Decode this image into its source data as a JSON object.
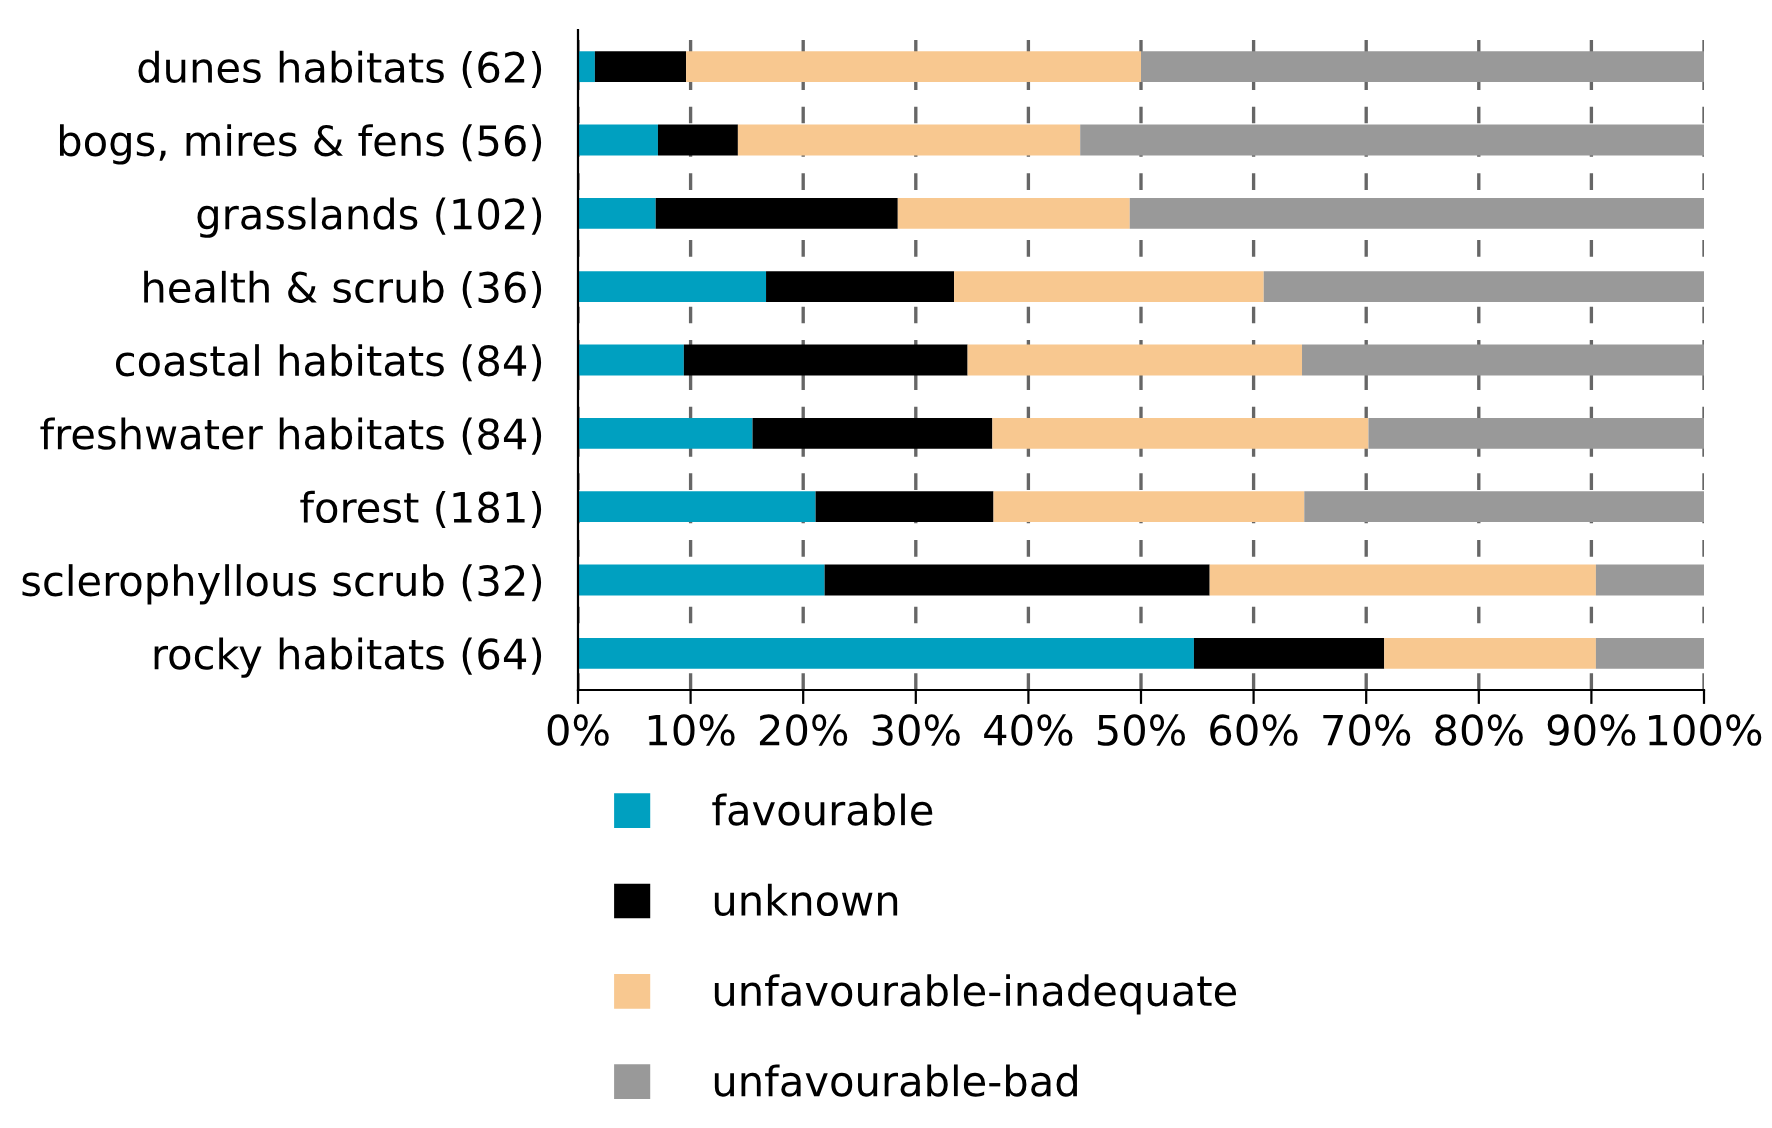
{
  "chart_data": {
    "type": "bar",
    "orientation": "horizontal",
    "stacked": true,
    "categories": [
      "dunes habitats (62)",
      "bogs, mires & fens (56)",
      "grasslands (102)",
      "health & scrub (36)",
      "coastal habitats (84)",
      "freshwater habitats (84)",
      "forest (181)",
      "sclerophyllous scrub (32)",
      "rocky habitats (64)"
    ],
    "series": [
      {
        "name": "favourable",
        "color": "#00a0c0",
        "values": [
          1.5,
          7.1,
          6.9,
          16.7,
          9.4,
          15.5,
          21.1,
          21.9,
          54.7
        ]
      },
      {
        "name": "unknown",
        "color": "#000000",
        "values": [
          8.1,
          7.1,
          21.5,
          16.7,
          25.2,
          21.3,
          15.8,
          34.2,
          16.9
        ]
      },
      {
        "name": "unfavourable-inadequate",
        "color": "#f8c890",
        "values": [
          40.4,
          30.4,
          20.6,
          27.5,
          29.7,
          33.4,
          27.6,
          34.3,
          18.8
        ]
      },
      {
        "name": "unfavourable-bad",
        "color": "#999999",
        "values": [
          50.0,
          55.4,
          51.0,
          39.1,
          35.7,
          29.8,
          35.5,
          9.6,
          9.6
        ]
      }
    ],
    "xlim": [
      0,
      100
    ],
    "xticks": [
      {
        "value": 0,
        "label": "0%"
      },
      {
        "value": 10,
        "label": "10%"
      },
      {
        "value": 20,
        "label": "20%"
      },
      {
        "value": 30,
        "label": "30%"
      },
      {
        "value": 40,
        "label": "40%"
      },
      {
        "value": 50,
        "label": "50%"
      },
      {
        "value": 60,
        "label": "60%"
      },
      {
        "value": 70,
        "label": "70%"
      },
      {
        "value": 80,
        "label": "80%"
      },
      {
        "value": 90,
        "label": "90%"
      },
      {
        "value": 100,
        "label": "100%"
      }
    ],
    "grid": "x",
    "legend": "bottom"
  }
}
